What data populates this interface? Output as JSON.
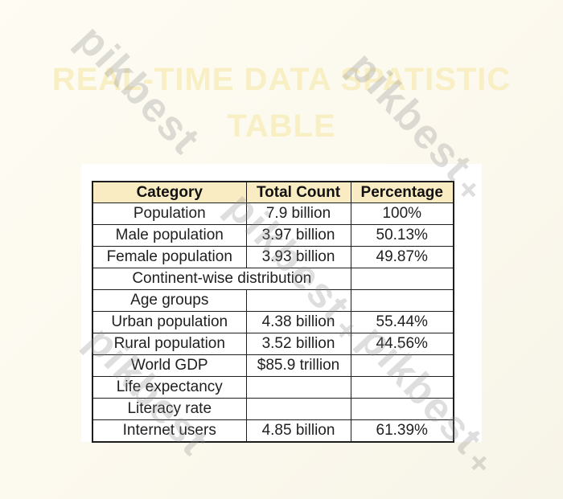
{
  "page": {
    "title_line1": "REAL-TIME DATA SPATISTIC",
    "title_line2": "TABLE"
  },
  "watermark": {
    "text": "pikbest",
    "plus": "+"
  },
  "colors": {
    "page_background_top": "#FEFCF3",
    "page_background_bottom": "#F7F4E8",
    "card_background": "#FFFFFF",
    "header_background": "#FAECC2",
    "table_border": "#1D1D1D",
    "cell_text": "#1F1F1F",
    "title_text": "#F8EFC5",
    "watermark_text": "#8A8A8A"
  },
  "chart_data": {
    "type": "table",
    "title": "REAL-TIME DATA SPATISTIC TABLE",
    "columns": [
      "Category",
      "Total Count",
      "Percentage"
    ],
    "rows": [
      {
        "category": "Population",
        "total_count": "7.9 billion",
        "percentage": "100%",
        "merged": false
      },
      {
        "category": "Male population",
        "total_count": "3.97 billion",
        "percentage": "50.13%",
        "merged": false
      },
      {
        "category": "Female population",
        "total_count": "3.93 billion",
        "percentage": "49.87%",
        "merged": false
      },
      {
        "category": "Continent-wise distribution",
        "total_count": "",
        "percentage": "",
        "merged": true
      },
      {
        "category": "Age groups",
        "total_count": "",
        "percentage": "",
        "merged": false
      },
      {
        "category": "Urban population",
        "total_count": "4.38 billion",
        "percentage": "55.44%",
        "merged": false
      },
      {
        "category": "Rural population",
        "total_count": "3.52 billion",
        "percentage": "44.56%",
        "merged": false
      },
      {
        "category": "World GDP",
        "total_count": "$85.9 trillion",
        "percentage": "",
        "merged": false
      },
      {
        "category": "Life expectancy",
        "total_count": "",
        "percentage": "",
        "merged": false
      },
      {
        "category": "Literacy rate",
        "total_count": "",
        "percentage": "",
        "merged": false
      },
      {
        "category": "Internet users",
        "total_count": "4.85 billion",
        "percentage": "61.39%",
        "merged": false
      }
    ]
  }
}
